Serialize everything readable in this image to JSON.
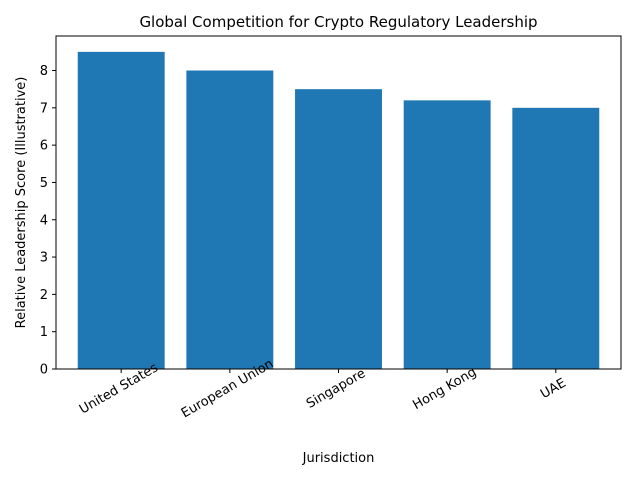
{
  "chart_data": {
    "type": "bar",
    "title": "Global Competition for Crypto Regulatory Leadership",
    "xlabel": "Jurisdiction",
    "ylabel": "Relative Leadership Score (Illustrative)",
    "categories": [
      "United States",
      "European Union",
      "Singapore",
      "Hong Kong",
      "UAE"
    ],
    "values": [
      8.5,
      8.0,
      7.5,
      7.2,
      7.0
    ],
    "ylim": [
      0,
      8.925
    ],
    "yticks": [
      0,
      1,
      2,
      3,
      4,
      5,
      6,
      7,
      8
    ],
    "grid": false,
    "legend": "none",
    "bar_color": "#1f77b4",
    "x_tick_rotation_deg": 30
  }
}
